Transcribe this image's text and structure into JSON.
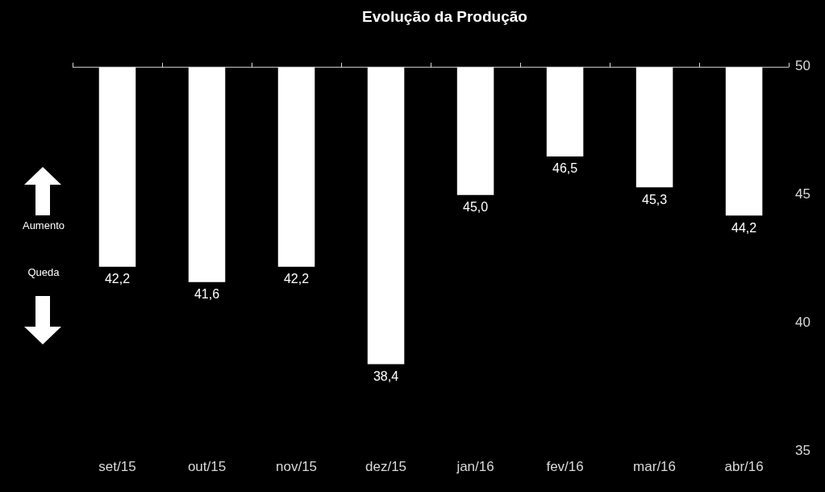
{
  "chart_data": {
    "type": "bar",
    "title": "Evolução da Produção",
    "categories": [
      "set/15",
      "out/15",
      "nov/15",
      "dez/15",
      "jan/16",
      "fev/16",
      "mar/16",
      "abr/16"
    ],
    "values": [
      42.2,
      41.6,
      42.2,
      38.4,
      45.0,
      46.5,
      45.3,
      44.2
    ],
    "value_labels": [
      "42,2",
      "41,6",
      "42,2",
      "38,4",
      "45,0",
      "46,5",
      "45,3",
      "44,2"
    ],
    "color": "#ffffff",
    "ylim": [
      35,
      50
    ],
    "yticks": [
      35,
      40,
      45,
      50
    ],
    "grid": false,
    "data_labels": true,
    "annotations": [
      "Aumento",
      "Queda"
    ]
  }
}
